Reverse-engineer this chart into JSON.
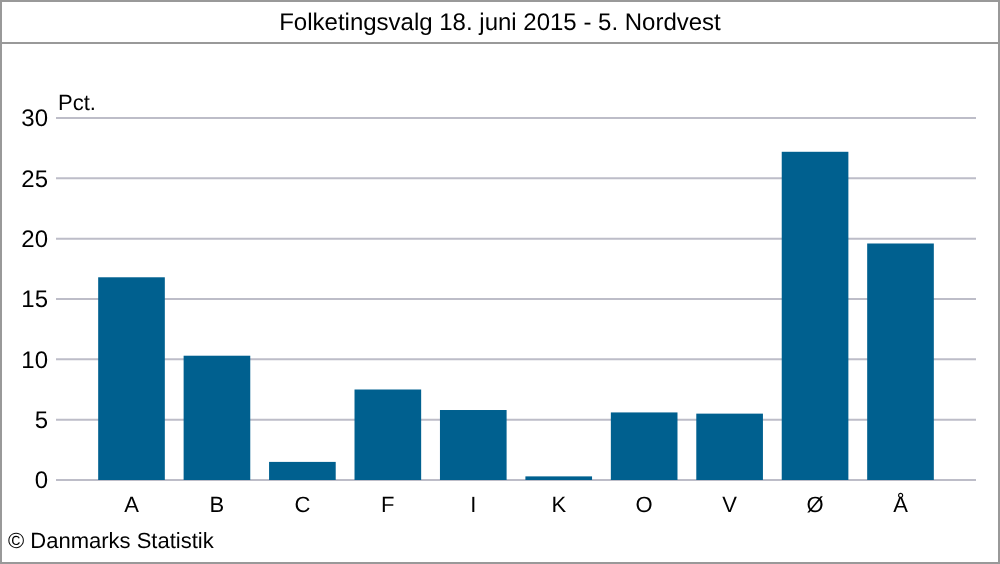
{
  "chart_data": {
    "type": "bar",
    "title": "Folketingsvalg 18. juni 2015 - 5. Nordvest",
    "ylabel": "Pct.",
    "categories": [
      "A",
      "B",
      "C",
      "F",
      "I",
      "K",
      "O",
      "V",
      "Ø",
      "Å"
    ],
    "values": [
      16.8,
      10.3,
      1.5,
      7.5,
      5.8,
      0.3,
      5.6,
      5.5,
      27.2,
      19.6
    ],
    "color": "#00608f",
    "ylim": [
      0,
      30
    ],
    "yticks": [
      0,
      5,
      10,
      15,
      20,
      25,
      30
    ],
    "grid": "y",
    "annotations": [
      "© Danmarks Statistik"
    ]
  }
}
